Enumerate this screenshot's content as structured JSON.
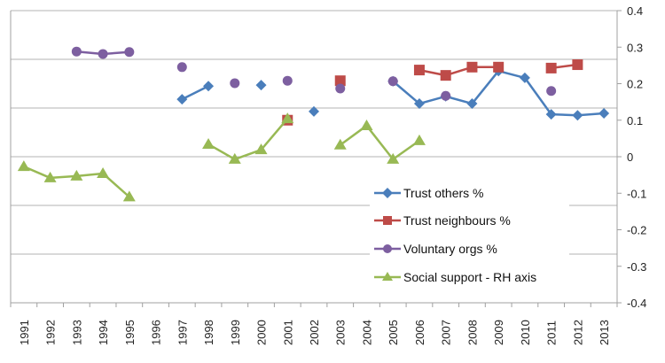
{
  "chart_data": {
    "type": "line",
    "title": "",
    "categories": [
      "1991",
      "1992",
      "1993",
      "1994",
      "1995",
      "1996",
      "1997",
      "1998",
      "1999",
      "2000",
      "2001",
      "2002",
      "2003",
      "2004",
      "2005",
      "2006",
      "2007",
      "2008",
      "2009",
      "2010",
      "2011",
      "2012",
      "2013"
    ],
    "left_axis": {
      "range": [
        0,
        0.6
      ],
      "labels_visible": false
    },
    "right_axis": {
      "range": [
        -0.4,
        0.4
      ],
      "ticks": [
        "0.4",
        "0.3",
        "0.2",
        "0.1",
        "0",
        "-0.1",
        "-0.2",
        "-0.3",
        "-0.4"
      ]
    },
    "grid": true,
    "legend_placement": "bottom-right",
    "series": [
      {
        "name": "Trust others %",
        "axis": "left",
        "color": "#4a7ebb",
        "marker": "diamond",
        "values": [
          null,
          null,
          null,
          null,
          null,
          null,
          0.418,
          0.445,
          null,
          0.447,
          null,
          0.393,
          null,
          null,
          0.455,
          0.409,
          0.424,
          0.409,
          0.476,
          0.462,
          0.387,
          0.385,
          0.389
        ]
      },
      {
        "name": "Trust neighbours %",
        "axis": "left",
        "color": "#be4b48",
        "marker": "square",
        "values": [
          null,
          null,
          null,
          null,
          null,
          null,
          null,
          null,
          null,
          null,
          0.375,
          null,
          0.456,
          null,
          null,
          0.478,
          0.467,
          0.484,
          0.484,
          null,
          0.482,
          0.489,
          null
        ]
      },
      {
        "name": "Voluntary orgs %",
        "axis": "left",
        "color": "#7d5fa0",
        "marker": "circle",
        "values": [
          null,
          null,
          0.516,
          0.511,
          0.515,
          null,
          0.484,
          null,
          0.451,
          null,
          0.456,
          null,
          0.44,
          null,
          0.455,
          null,
          0.425,
          null,
          null,
          null,
          0.435,
          null,
          null
        ]
      },
      {
        "name": "Social support - RH axis",
        "axis": "right",
        "color": "#98b954",
        "marker": "triangle",
        "values": [
          -0.027,
          -0.058,
          -0.053,
          -0.046,
          -0.11,
          null,
          null,
          0.034,
          -0.007,
          0.019,
          0.104,
          null,
          0.032,
          0.085,
          -0.007,
          0.044,
          null,
          null,
          null,
          null,
          null,
          null,
          null
        ]
      }
    ]
  }
}
